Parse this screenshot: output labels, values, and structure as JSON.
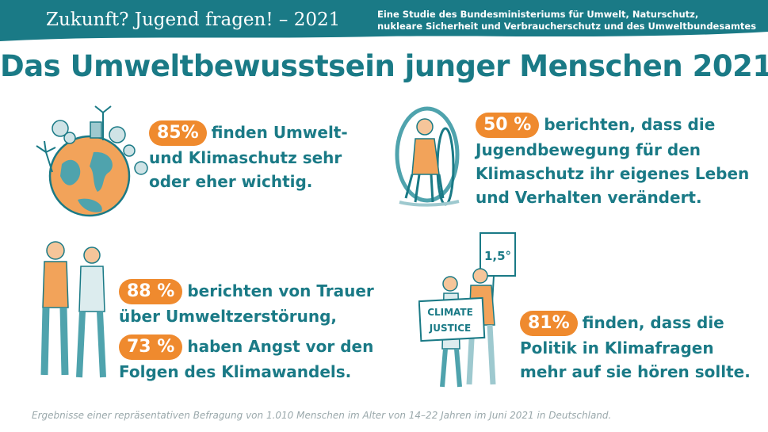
{
  "header": {
    "series": "Zukunft? Jugend fragen! – 2021",
    "org_line1": "Eine Studie des Bundesministeriums für Umwelt, Naturschutz,",
    "org_line2": "nukleare Sicherheit und Verbraucherschutz und des Umweltbundesamtes"
  },
  "title": "Das Umweltbewusstsein junger Menschen 2021",
  "stats": {
    "s1": {
      "value": "85%",
      "line1": "finden Umwelt-",
      "line2": "und Klimaschutz sehr",
      "line3": "oder eher wichtig."
    },
    "s2": {
      "value": "50 %",
      "line1": "berichten, dass die",
      "line2": "Jugendbewegung für den",
      "line3": "Klimaschutz ihr eigenes Leben",
      "line4": "und Verhalten verändert."
    },
    "s3": {
      "value": "88 %",
      "line1": "berichten von Trauer",
      "line2": "über Umweltzerstörung,"
    },
    "s4": {
      "value": "73 %",
      "line1": "haben Angst vor den",
      "line2": "Folgen des Klimawandels."
    },
    "s5": {
      "value": "81%",
      "line1": "finden, dass die",
      "line2": "Politik in Klimafragen",
      "line3": "mehr auf sie hören sollte."
    }
  },
  "illustrations": {
    "sign_temp": "1,5°",
    "sign_line1": "CLIMATE",
    "sign_line2": "JUSTICE"
  },
  "footnote": "Ergebnisse einer repräsentativen Befragung von 1.010 Menschen im Alter von 14–22 Jahren im Juni 2021 in Deutschland.",
  "colors": {
    "teal": "#1a7a86",
    "orange": "#ef8a2e",
    "grey": "#9aa8ab"
  }
}
